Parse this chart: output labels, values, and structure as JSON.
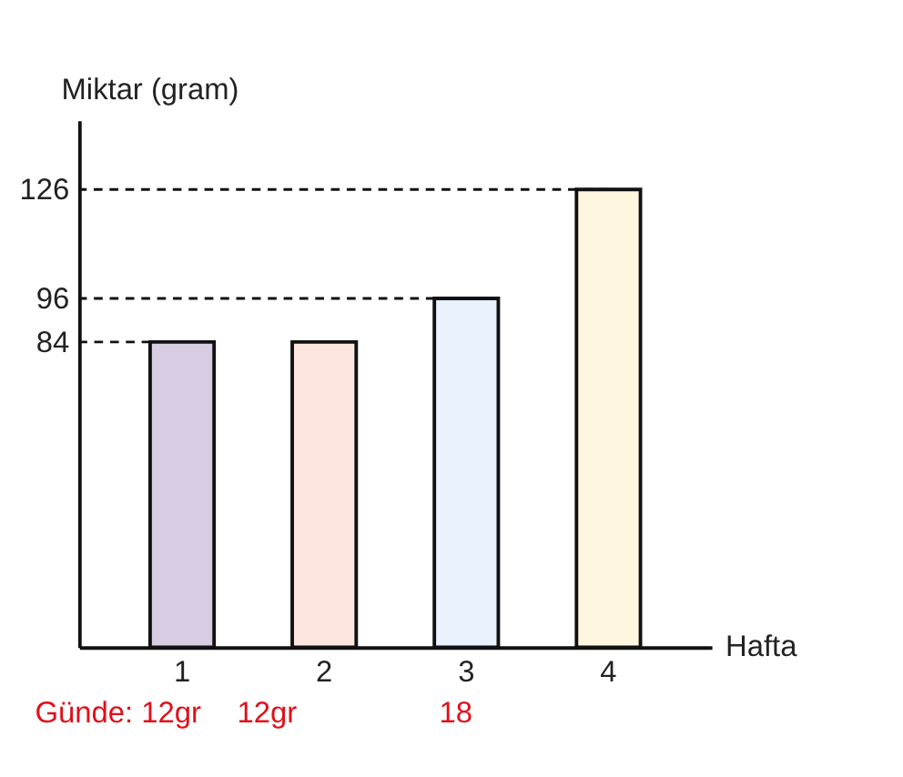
{
  "chart_data": {
    "type": "bar",
    "xlabel": "Hafta",
    "ylabel": "Miktar (gram)",
    "categories": [
      "1",
      "2",
      "3",
      "4"
    ],
    "values": [
      84,
      84,
      96,
      126
    ],
    "colors": [
      "#d8cce3",
      "#fde6e0",
      "#e8f1fc",
      "#fef7e0"
    ],
    "ylim": [
      0,
      145
    ],
    "yticks": [
      84,
      96,
      126
    ],
    "grid": false,
    "ref_lines": [
      {
        "axis": "y",
        "value": 84,
        "line_style": "dashed"
      },
      {
        "axis": "y",
        "value": 96,
        "line_style": "dashed"
      },
      {
        "axis": "y",
        "value": 126,
        "line_style": "dashed"
      }
    ],
    "annotations": [
      "Günde: 12gr",
      "12gr",
      "18"
    ]
  }
}
